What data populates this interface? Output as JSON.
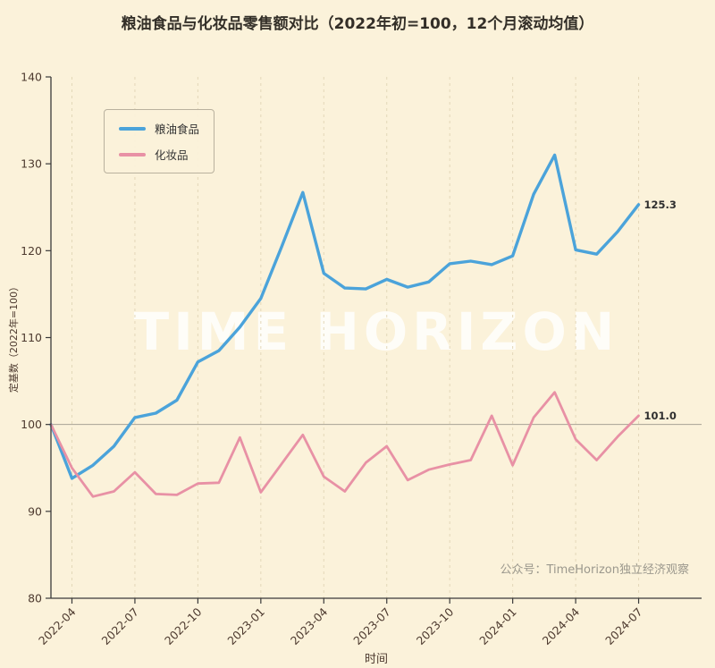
{
  "title": "粮油食品与化妆品零售额对比（2022年初=100，12个月滚动均值）",
  "watermark": "TIME HORIZON",
  "source_note": "公众号：TimeHorizon独立经济观察",
  "colors": {
    "background": "#fbf2da",
    "axis": "#3a3a3a",
    "tick_label": "#4d3a2f",
    "grid": "#e3d7b8",
    "reference_line": "#a8a296",
    "end_label": "#2f2f2f",
    "watermark": "rgba(255,255,255,0.8)",
    "note_gray": "#9b988d"
  },
  "chart_data": {
    "type": "line",
    "title": "粮油食品与化妆品零售额对比（2022年初=100，12个月滚动均值）",
    "xlabel": "时间",
    "ylabel": "定基数（2022年=100）",
    "ylim": [
      80,
      140
    ],
    "yticks": [
      80,
      90,
      100,
      110,
      120,
      130,
      140
    ],
    "grid": "vertical-dashed",
    "legend_position": "upper left",
    "reference_line_y": 100,
    "x": [
      "2022-03",
      "2022-04",
      "2022-05",
      "2022-06",
      "2022-07",
      "2022-08",
      "2022-09",
      "2022-10",
      "2022-11",
      "2022-12",
      "2023-01",
      "2023-02",
      "2023-03",
      "2023-04",
      "2023-05",
      "2023-06",
      "2023-07",
      "2023-08",
      "2023-09",
      "2023-10",
      "2023-11",
      "2023-12",
      "2024-01",
      "2024-02",
      "2024-03",
      "2024-04",
      "2024-05",
      "2024-06",
      "2024-07"
    ],
    "xtick_labels": [
      "2022-04",
      "2022-07",
      "2022-10",
      "2023-01",
      "2023-04",
      "2023-07",
      "2023-10",
      "2024-01",
      "2024-04",
      "2024-07"
    ],
    "series": [
      {
        "name": "粮油食品",
        "color": "#4BA3DA",
        "end_label": "125.3",
        "values": [
          100.0,
          93.8,
          95.3,
          97.5,
          100.8,
          101.3,
          102.8,
          107.2,
          108.5,
          111.2,
          114.5,
          120.5,
          126.7,
          117.4,
          115.7,
          115.6,
          116.7,
          115.8,
          116.4,
          118.5,
          118.8,
          118.4,
          119.4,
          126.5,
          131.0,
          120.1,
          119.6,
          122.2,
          125.3
        ]
      },
      {
        "name": "化妆品",
        "color": "#E891A5",
        "end_label": "101.0",
        "values": [
          100.0,
          95.0,
          91.7,
          92.3,
          94.5,
          92.0,
          91.9,
          93.2,
          93.3,
          98.5,
          92.2,
          95.5,
          98.8,
          94.0,
          92.3,
          95.6,
          97.5,
          93.6,
          94.8,
          95.4,
          95.9,
          101.0,
          95.3,
          100.8,
          103.7,
          98.3,
          95.9,
          98.6,
          101.0
        ]
      }
    ]
  }
}
